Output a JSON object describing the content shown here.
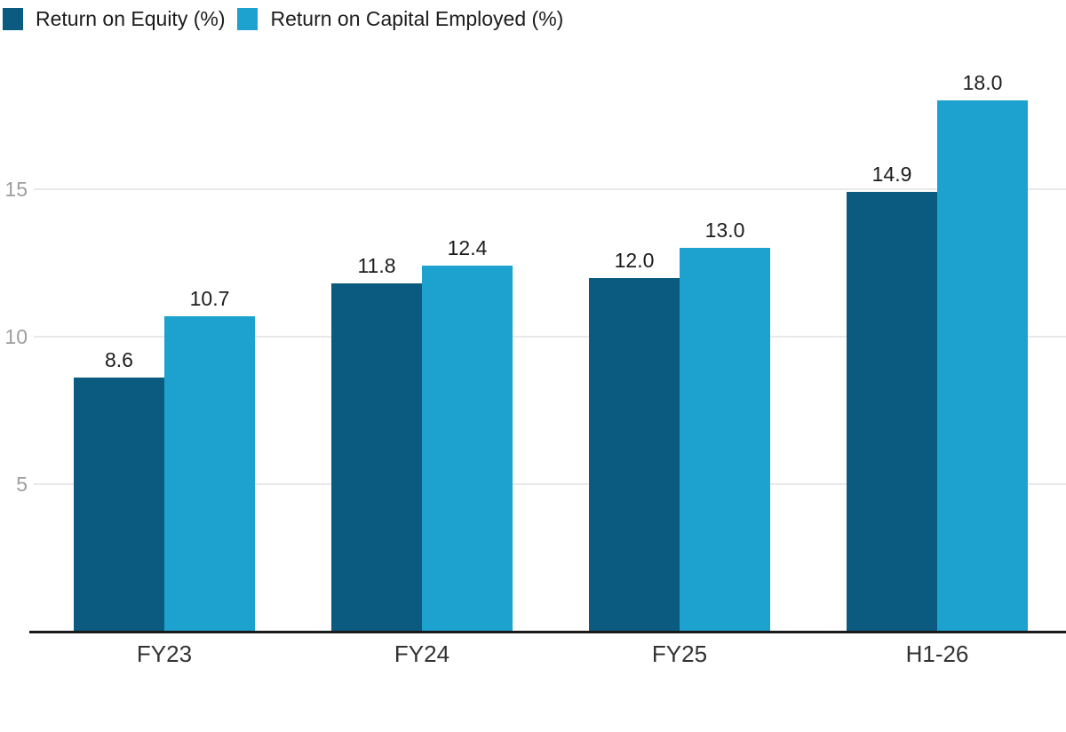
{
  "chart_data": {
    "type": "bar",
    "categories": [
      "FY23",
      "FY24",
      "FY25",
      "H1-26"
    ],
    "series": [
      {
        "name": "Return on Equity (%)",
        "color": "#0b5a80",
        "values": [
          8.6,
          11.8,
          12.0,
          14.9
        ]
      },
      {
        "name": "Return on Capital Employed (%)",
        "color": "#1da2cf",
        "values": [
          10.7,
          12.4,
          13.0,
          18.0
        ]
      }
    ],
    "value_labels": {
      "Return on Equity (%)": [
        "8.6",
        "11.8",
        "12.0",
        "14.9"
      ],
      "Return on Capital Employed (%)": [
        "10.7",
        "12.4",
        "13.0",
        "18.0"
      ]
    },
    "title": "",
    "xlabel": "",
    "ylabel": "",
    "yticks": [
      5,
      10,
      15
    ],
    "ylim": [
      0,
      18.6
    ],
    "grid": true,
    "legend_position": "top-left"
  },
  "colors": {
    "grid_line": "#e9e9e9",
    "axis_line": "#1a1a1a",
    "ytick_text": "#9e9e9e",
    "xtick_text": "#333333",
    "value_label_text": "#1c1c1c",
    "background": "#ffffff"
  }
}
